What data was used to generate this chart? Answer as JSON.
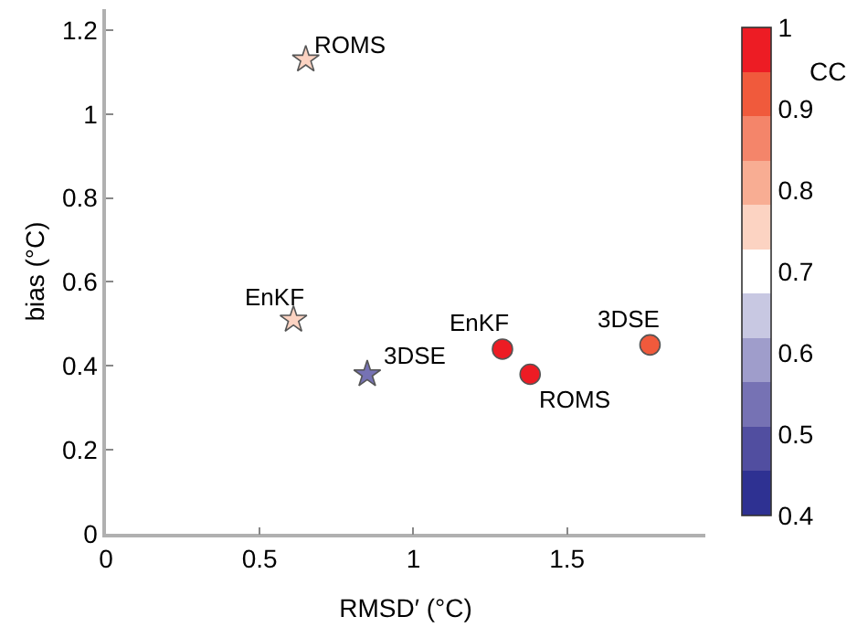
{
  "chart_data": {
    "type": "scatter",
    "xlabel": "RMSD′ (°C)",
    "ylabel": "bias (°C)",
    "clabel": "CC",
    "xlim": [
      0,
      1.95
    ],
    "xticks": [
      0,
      0.5,
      1,
      1.5
    ],
    "ylim": [
      0,
      1.25
    ],
    "yticks": [
      0,
      0.2,
      0.4,
      0.6,
      0.8,
      1,
      1.2
    ],
    "clim": [
      0.4,
      1
    ],
    "cticks": [
      0.4,
      0.5,
      0.6,
      0.7,
      0.8,
      0.9,
      1
    ],
    "series": [
      {
        "marker": "star",
        "x": [
          0.65,
          0.61,
          0.85
        ],
        "values": [
          1.13,
          0.51,
          0.38
        ],
        "colors": [
          "#fcd3c2",
          "#fcd3c2",
          "#7672b4"
        ]
      },
      {
        "marker": "circle",
        "x": [
          1.29,
          1.38,
          1.77
        ],
        "values": [
          0.44,
          0.38,
          0.45
        ],
        "colors": [
          "#ed1c24",
          "#ed1c24",
          "#f05a3c"
        ]
      }
    ],
    "annotations": [
      {
        "text": "ROMS",
        "x": 0.65,
        "y": 1.13
      },
      {
        "text": "EnKF",
        "x": 0.61,
        "y": 0.51
      },
      {
        "text": "3DSE",
        "x": 0.85,
        "y": 0.38
      },
      {
        "text": "EnKF",
        "x": 1.29,
        "y": 0.44
      },
      {
        "text": "ROMS",
        "x": 1.38,
        "y": 0.38
      },
      {
        "text": "3DSE",
        "x": 1.77,
        "y": 0.45
      }
    ]
  }
}
